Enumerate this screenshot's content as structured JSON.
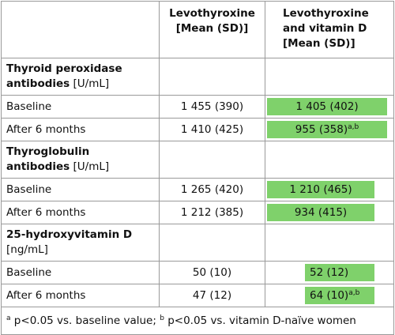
{
  "table": {
    "header": [
      [
        "Levothyroxine",
        "[Mean (SD)]"
      ],
      [
        "Levothyroxine",
        "and vitamin D",
        "[Mean (SD)]"
      ]
    ],
    "sections": [
      {
        "heading": [
          {
            "bold": "Thyroid peroxidase"
          },
          {
            "bold": "antibodies",
            "unit": "[U/mL]"
          }
        ],
        "rows": [
          {
            "label": "Baseline",
            "levo": "1 455 (390)",
            "levo_d": "1 405 (402)"
          },
          {
            "label": "After 6 months",
            "levo": "1 410 (425)",
            "levo_d": "955 (358)",
            "sup": "a,b"
          }
        ]
      },
      {
        "heading": [
          {
            "bold": "Thyroglobulin"
          },
          {
            "bold": "antibodies",
            "unit": "[U/mL]"
          }
        ],
        "rows": [
          {
            "label": "Baseline",
            "levo": "1 265 (420)",
            "levo_d": "1 210 (465)"
          },
          {
            "label": "After 6 months",
            "levo": "1 212 (385)",
            "levo_d": "934 (415)"
          }
        ]
      },
      {
        "heading": [
          {
            "bold": "25-hydroxyvitamin D"
          },
          {
            "unit": "[ng/mL]"
          }
        ],
        "rows": [
          {
            "label": "Baseline",
            "levo": "50 (10)",
            "levo_d": "52 (12)"
          },
          {
            "label": "After 6 months",
            "levo": "47 (12)",
            "levo_d": "64 (10)",
            "sup": "a,b"
          }
        ]
      }
    ],
    "footnote": [
      {
        "sup": "a"
      },
      {
        "text": " p<0.05 vs. baseline value; "
      },
      {
        "sup": "b"
      },
      {
        "text": " p<0.05 vs. vitamin D-naïve women"
      }
    ]
  }
}
